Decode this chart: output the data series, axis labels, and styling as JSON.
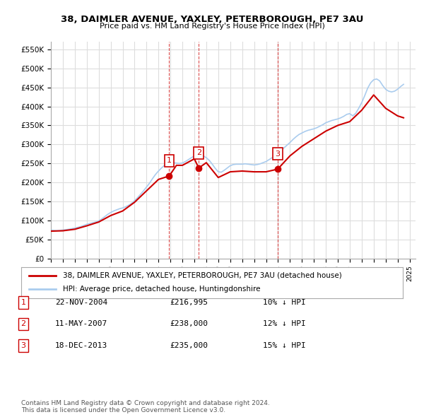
{
  "title": "38, DAIMLER AVENUE, YAXLEY, PETERBOROUGH, PE7 3AU",
  "subtitle": "Price paid vs. HM Land Registry's House Price Index (HPI)",
  "xlabel": "",
  "ylabel": "",
  "background_color": "#ffffff",
  "grid_color": "#dddddd",
  "hpi_color": "#aaccee",
  "sale_color": "#cc0000",
  "ylim": [
    0,
    570000
  ],
  "yticks": [
    0,
    50000,
    100000,
    150000,
    200000,
    250000,
    300000,
    350000,
    400000,
    450000,
    500000,
    550000
  ],
  "ytick_labels": [
    "£0",
    "£50K",
    "£100K",
    "£150K",
    "£200K",
    "£250K",
    "£300K",
    "£350K",
    "£400K",
    "£450K",
    "£500K",
    "£550K"
  ],
  "sale_points": [
    {
      "year": 2004.9,
      "price": 216995,
      "label": "1"
    },
    {
      "year": 2007.37,
      "price": 238000,
      "label": "2"
    },
    {
      "year": 2013.97,
      "price": 235000,
      "label": "3"
    }
  ],
  "sale_vlines": [
    2004.9,
    2007.37,
    2013.97
  ],
  "legend_sale_label": "38, DAIMLER AVENUE, YAXLEY, PETERBOROUGH, PE7 3AU (detached house)",
  "legend_hpi_label": "HPI: Average price, detached house, Huntingdonshire",
  "table_rows": [
    {
      "num": "1",
      "date": "22-NOV-2004",
      "price": "£216,995",
      "change": "10% ↓ HPI"
    },
    {
      "num": "2",
      "date": "11-MAY-2007",
      "price": "£238,000",
      "change": "12% ↓ HPI"
    },
    {
      "num": "3",
      "date": "18-DEC-2013",
      "price": "£235,000",
      "change": "15% ↓ HPI"
    }
  ],
  "footnote": "Contains HM Land Registry data © Crown copyright and database right 2024.\nThis data is licensed under the Open Government Licence v3.0.",
  "hpi_data": {
    "years": [
      1995.0,
      1995.25,
      1995.5,
      1995.75,
      1996.0,
      1996.25,
      1996.5,
      1996.75,
      1997.0,
      1997.25,
      1997.5,
      1997.75,
      1998.0,
      1998.25,
      1998.5,
      1998.75,
      1999.0,
      1999.25,
      1999.5,
      1999.75,
      2000.0,
      2000.25,
      2000.5,
      2000.75,
      2001.0,
      2001.25,
      2001.5,
      2001.75,
      2002.0,
      2002.25,
      2002.5,
      2002.75,
      2003.0,
      2003.25,
      2003.5,
      2003.75,
      2004.0,
      2004.25,
      2004.5,
      2004.75,
      2005.0,
      2005.25,
      2005.5,
      2005.75,
      2006.0,
      2006.25,
      2006.5,
      2006.75,
      2007.0,
      2007.25,
      2007.5,
      2007.75,
      2008.0,
      2008.25,
      2008.5,
      2008.75,
      2009.0,
      2009.25,
      2009.5,
      2009.75,
      2010.0,
      2010.25,
      2010.5,
      2010.75,
      2011.0,
      2011.25,
      2011.5,
      2011.75,
      2012.0,
      2012.25,
      2012.5,
      2012.75,
      2013.0,
      2013.25,
      2013.5,
      2013.75,
      2014.0,
      2014.25,
      2014.5,
      2014.75,
      2015.0,
      2015.25,
      2015.5,
      2015.75,
      2016.0,
      2016.25,
      2016.5,
      2016.75,
      2017.0,
      2017.25,
      2017.5,
      2017.75,
      2018.0,
      2018.25,
      2018.5,
      2018.75,
      2019.0,
      2019.25,
      2019.5,
      2019.75,
      2020.0,
      2020.25,
      2020.5,
      2020.75,
      2021.0,
      2021.25,
      2021.5,
      2021.75,
      2022.0,
      2022.25,
      2022.5,
      2022.75,
      2023.0,
      2023.25,
      2023.5,
      2023.75,
      2024.0,
      2024.25,
      2024.5
    ],
    "values": [
      75000,
      74000,
      73500,
      74000,
      75000,
      76000,
      77000,
      78500,
      80000,
      82000,
      84000,
      87000,
      90000,
      92000,
      94000,
      96000,
      99000,
      104000,
      110000,
      116000,
      121000,
      125000,
      128000,
      131000,
      133000,
      136000,
      140000,
      145000,
      152000,
      160000,
      169000,
      178000,
      188000,
      198000,
      210000,
      221000,
      230000,
      238000,
      245000,
      250000,
      253000,
      252000,
      251000,
      250000,
      251000,
      255000,
      260000,
      265000,
      270000,
      272000,
      273000,
      270000,
      265000,
      258000,
      248000,
      237000,
      228000,
      227000,
      232000,
      238000,
      244000,
      247000,
      248000,
      248000,
      248000,
      249000,
      248000,
      247000,
      246000,
      247000,
      249000,
      252000,
      255000,
      260000,
      265000,
      270000,
      276000,
      283000,
      291000,
      298000,
      305000,
      313000,
      320000,
      326000,
      330000,
      334000,
      337000,
      339000,
      341000,
      344000,
      348000,
      352000,
      357000,
      360000,
      363000,
      365000,
      367000,
      370000,
      374000,
      379000,
      381000,
      375000,
      382000,
      395000,
      410000,
      428000,
      448000,
      462000,
      470000,
      472000,
      467000,
      455000,
      445000,
      440000,
      438000,
      440000,
      445000,
      452000,
      458000
    ]
  }
}
